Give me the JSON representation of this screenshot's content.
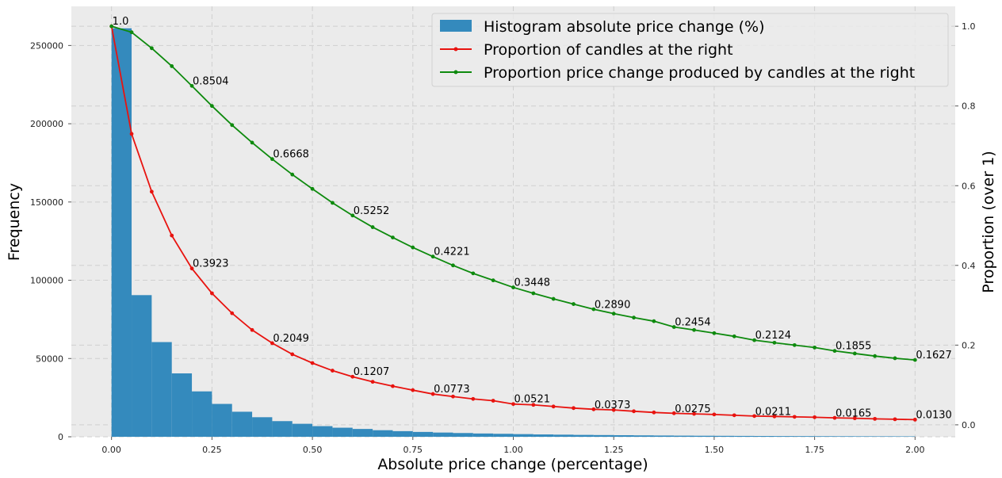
{
  "chart_data": {
    "type": "histogram+line",
    "xlabel": "Absolute price change (percentage)",
    "ylabel_left": "Frequency",
    "ylabel_right": "Proportion (over 1)",
    "xlim": [
      -0.1,
      2.1
    ],
    "ylim_left": [
      0,
      275000
    ],
    "ylim_right": [
      -0.03,
      1.05
    ],
    "x_ticks": [
      0.0,
      0.25,
      0.5,
      0.75,
      1.0,
      1.25,
      1.5,
      1.75,
      2.0
    ],
    "x_tick_labels": [
      "0.00",
      "0.25",
      "0.50",
      "0.75",
      "1.00",
      "1.25",
      "1.50",
      "1.75",
      "2.00"
    ],
    "y_left_ticks": [
      0,
      50000,
      100000,
      150000,
      200000,
      250000
    ],
    "y_left_tick_labels": [
      "0",
      "50000",
      "100000",
      "150000",
      "200000",
      "250000"
    ],
    "y_right_ticks": [
      0.0,
      0.2,
      0.4,
      0.6,
      0.8,
      1.0
    ],
    "y_right_tick_labels": [
      "0.0",
      "0.2",
      "0.4",
      "0.6",
      "0.8",
      "1.0"
    ],
    "grid": true,
    "legend_position": "top-right",
    "histogram": {
      "name": "Histogram absolute price change (%)",
      "color": "#348ABD",
      "bin_width": 0.05,
      "bin_starts": [
        0.0,
        0.05,
        0.1,
        0.15,
        0.2,
        0.25,
        0.3,
        0.35,
        0.4,
        0.45,
        0.5,
        0.55,
        0.6,
        0.65,
        0.7,
        0.75,
        0.8,
        0.85,
        0.9,
        0.95,
        1.0,
        1.05,
        1.1,
        1.15,
        1.2,
        1.25,
        1.3,
        1.35,
        1.4,
        1.45,
        1.5,
        1.55,
        1.6,
        1.65,
        1.7,
        1.75,
        1.8,
        1.85,
        1.9,
        1.95
      ],
      "counts": [
        261000,
        90500,
        60500,
        40500,
        29000,
        21000,
        16000,
        12500,
        10000,
        8300,
        6800,
        5800,
        5000,
        4200,
        3600,
        3100,
        2700,
        2400,
        2100,
        1900,
        1700,
        1500,
        1350,
        1200,
        1100,
        1000,
        900,
        800,
        720,
        650,
        600,
        550,
        500,
        450,
        420,
        380,
        350,
        320,
        300,
        280
      ]
    },
    "series": [
      {
        "name": "Proportion of candles at the right",
        "color": "#E8130F",
        "x": [
          0.0,
          0.05,
          0.1,
          0.15,
          0.2,
          0.25,
          0.3,
          0.35,
          0.4,
          0.45,
          0.5,
          0.55,
          0.6,
          0.65,
          0.7,
          0.75,
          0.8,
          0.85,
          0.9,
          0.95,
          1.0,
          1.05,
          1.1,
          1.15,
          1.2,
          1.25,
          1.3,
          1.35,
          1.4,
          1.45,
          1.5,
          1.55,
          1.6,
          1.65,
          1.7,
          1.75,
          1.8,
          1.85,
          1.9,
          1.95,
          2.0
        ],
        "values": [
          1.0,
          0.73,
          0.585,
          0.475,
          0.3923,
          0.33,
          0.28,
          0.238,
          0.2049,
          0.177,
          0.155,
          0.136,
          0.1207,
          0.108,
          0.097,
          0.087,
          0.0773,
          0.071,
          0.065,
          0.0605,
          0.0521,
          0.05,
          0.046,
          0.042,
          0.039,
          0.0373,
          0.034,
          0.031,
          0.029,
          0.0275,
          0.026,
          0.024,
          0.022,
          0.0211,
          0.02,
          0.019,
          0.0175,
          0.0165,
          0.015,
          0.014,
          0.013
        ]
      },
      {
        "name": "Proportion price change produced by candles at the right",
        "color": "#0E8A0E",
        "x": [
          0.0,
          0.05,
          0.1,
          0.15,
          0.2,
          0.25,
          0.3,
          0.35,
          0.4,
          0.45,
          0.5,
          0.55,
          0.6,
          0.65,
          0.7,
          0.75,
          0.8,
          0.85,
          0.9,
          0.95,
          1.0,
          1.05,
          1.1,
          1.15,
          1.2,
          1.25,
          1.3,
          1.35,
          1.4,
          1.45,
          1.5,
          1.55,
          1.6,
          1.65,
          1.7,
          1.75,
          1.8,
          1.85,
          1.9,
          1.95,
          2.0
        ],
        "values": [
          1.0,
          0.985,
          0.945,
          0.9,
          0.8504,
          0.8,
          0.752,
          0.708,
          0.6668,
          0.628,
          0.592,
          0.557,
          0.5252,
          0.496,
          0.47,
          0.445,
          0.4221,
          0.4,
          0.38,
          0.3625,
          0.3448,
          0.33,
          0.316,
          0.303,
          0.29,
          0.279,
          0.269,
          0.26,
          0.2454,
          0.238,
          0.23,
          0.222,
          0.2124,
          0.206,
          0.2,
          0.194,
          0.1855,
          0.179,
          0.1725,
          0.167,
          0.1627
        ]
      }
    ],
    "annotations": {
      "red": [
        {
          "x": 0.2,
          "y": 0.3923,
          "text": "0.3923"
        },
        {
          "x": 0.4,
          "y": 0.2049,
          "text": "0.2049"
        },
        {
          "x": 0.6,
          "y": 0.1207,
          "text": "0.1207"
        },
        {
          "x": 0.8,
          "y": 0.0773,
          "text": "0.0773"
        },
        {
          "x": 1.0,
          "y": 0.0521,
          "text": "0.0521"
        },
        {
          "x": 1.2,
          "y": 0.0373,
          "text": "0.0373"
        },
        {
          "x": 1.4,
          "y": 0.0275,
          "text": "0.0275"
        },
        {
          "x": 1.6,
          "y": 0.0211,
          "text": "0.0211"
        },
        {
          "x": 1.8,
          "y": 0.0165,
          "text": "0.0165"
        },
        {
          "x": 2.0,
          "y": 0.013,
          "text": "0.0130"
        }
      ],
      "green": [
        {
          "x": 0.0,
          "y": 1.0,
          "text": "1.0"
        },
        {
          "x": 0.2,
          "y": 0.8504,
          "text": "0.8504"
        },
        {
          "x": 0.4,
          "y": 0.6668,
          "text": "0.6668"
        },
        {
          "x": 0.6,
          "y": 0.5252,
          "text": "0.5252"
        },
        {
          "x": 0.8,
          "y": 0.4221,
          "text": "0.4221"
        },
        {
          "x": 1.0,
          "y": 0.3448,
          "text": "0.3448"
        },
        {
          "x": 1.2,
          "y": 0.289,
          "text": "0.2890"
        },
        {
          "x": 1.4,
          "y": 0.2454,
          "text": "0.2454"
        },
        {
          "x": 1.6,
          "y": 0.2124,
          "text": "0.2124"
        },
        {
          "x": 1.8,
          "y": 0.1855,
          "text": "0.1855"
        },
        {
          "x": 2.0,
          "y": 0.1627,
          "text": "0.1627"
        }
      ]
    }
  },
  "colors": {
    "plot_background": "#EBEBEB",
    "grid": "#CFCFCF",
    "histogram": "#348ABD",
    "red_line": "#E8130F",
    "green_line": "#0E8A0E"
  }
}
